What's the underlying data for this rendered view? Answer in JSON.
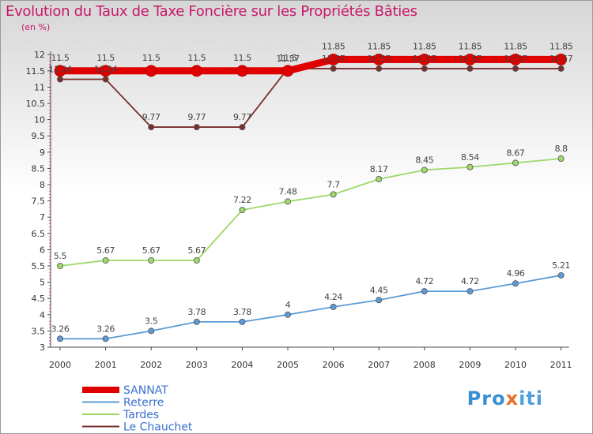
{
  "chart_data": {
    "type": "line",
    "title": "Evolution du Taux de Taxe Foncière sur les Propriétés Bâties",
    "ylabel": "(en %)",
    "xlabel": "",
    "x": [
      "2000",
      "2001",
      "2002",
      "2003",
      "2004",
      "2005",
      "2006",
      "2007",
      "2008",
      "2009",
      "2010",
      "2011"
    ],
    "ylim": [
      3,
      12
    ],
    "yticks": [
      "3",
      "3.5",
      "4",
      "4.5",
      "5",
      "5.5",
      "6",
      "6.5",
      "7",
      "7.5",
      "8",
      "8.5",
      "9",
      "9.5",
      "10",
      "10.5",
      "11",
      "11.5",
      "12"
    ],
    "grid": false,
    "legend_position": "bottom-left",
    "series": [
      {
        "name": "SANNAT",
        "color": "#e00000",
        "values": [
          11.5,
          11.5,
          11.5,
          11.5,
          11.5,
          11.5,
          11.85,
          11.85,
          11.85,
          11.85,
          11.85,
          11.85
        ],
        "labels": [
          "11.5",
          "11.5",
          "11.5",
          "11.5",
          "11.5",
          "11.5",
          "11.85",
          "11.85",
          "11.85",
          "11.85",
          "11.85",
          "11.85"
        ]
      },
      {
        "name": "Reterre",
        "color": "#5b9bd5",
        "values": [
          3.26,
          3.26,
          3.5,
          3.78,
          3.78,
          4,
          4.24,
          4.45,
          4.72,
          4.72,
          4.96,
          5.21
        ],
        "labels": [
          "3.26",
          "3.26",
          "3.5",
          "3.78",
          "3.78",
          "4",
          "4.24",
          "4.45",
          "4.72",
          "4.72",
          "4.96",
          "5.21"
        ]
      },
      {
        "name": "Tardes",
        "color": "#9ed86a",
        "values": [
          5.5,
          5.67,
          5.67,
          5.67,
          7.22,
          7.48,
          7.7,
          8.17,
          8.45,
          8.54,
          8.67,
          8.8
        ],
        "labels": [
          "5.5",
          "5.67",
          "5.67",
          "5.67",
          "7.22",
          "7.48",
          "7.7",
          "8.17",
          "8.45",
          "8.54",
          "8.67",
          "8.8"
        ]
      },
      {
        "name": "Le Chauchet",
        "color": "#7a2f2f",
        "values": [
          11.24,
          11.24,
          9.77,
          9.77,
          9.77,
          11.57,
          11.57,
          11.57,
          11.57,
          11.57,
          11.57,
          11.57
        ],
        "labels": [
          "11.24",
          "11.24",
          "9.77",
          "9.77",
          "9.77",
          "11.57",
          "11.57",
          "11.57",
          "11.57",
          "11.57",
          "11.57",
          "11.57"
        ]
      }
    ]
  },
  "brand": {
    "part1": "Pro",
    "part2": "x",
    "part3": "iti"
  }
}
